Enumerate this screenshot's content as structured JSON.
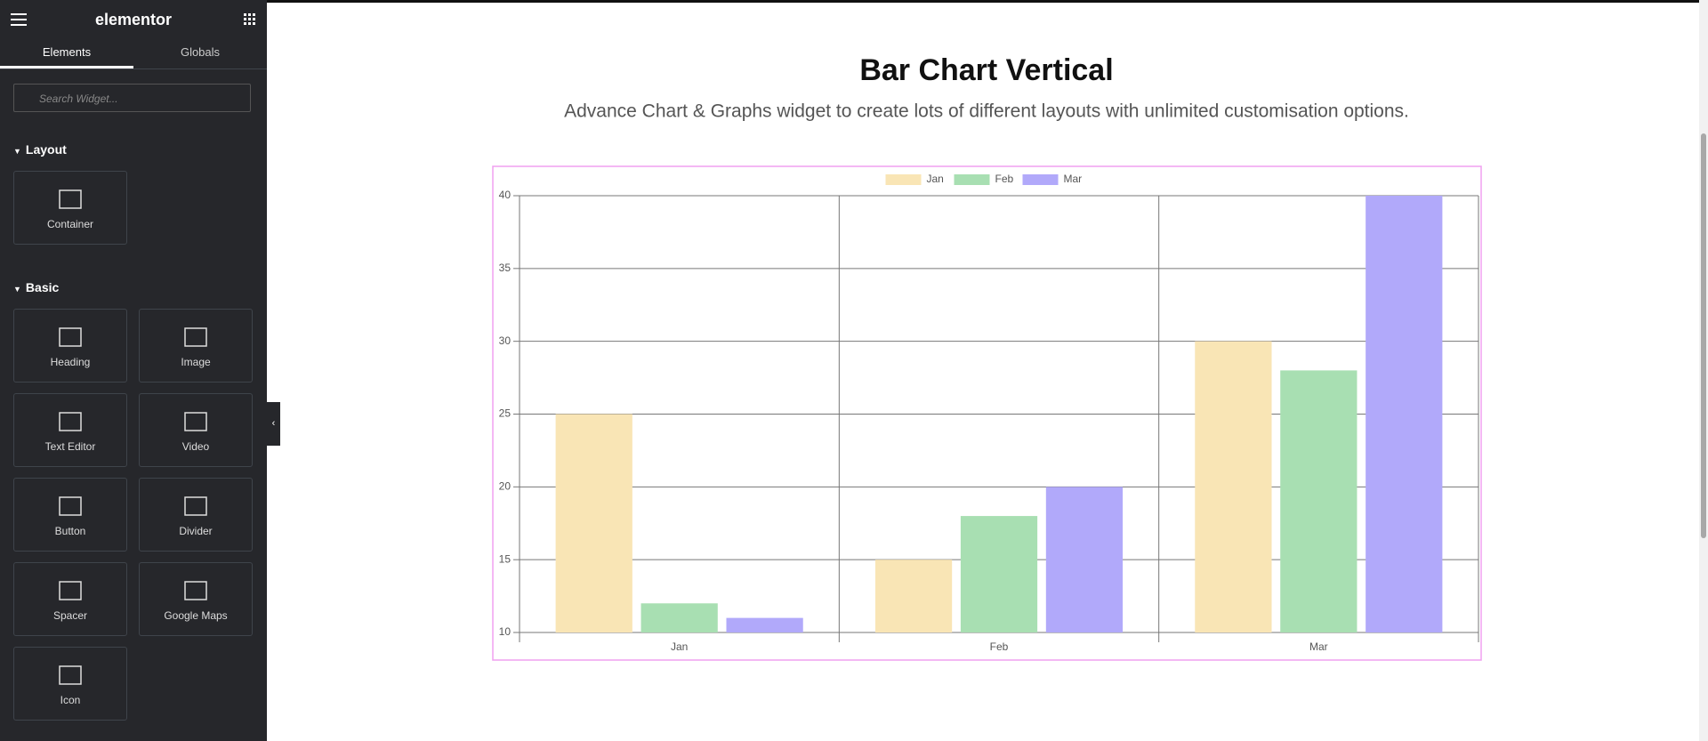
{
  "sidebar": {
    "brand": "elementor",
    "tabs": [
      "Elements",
      "Globals"
    ],
    "search_placeholder": "Search Widget...",
    "sections": [
      {
        "title": "Layout",
        "widgets": [
          "Container"
        ]
      },
      {
        "title": "Basic",
        "widgets": [
          "Heading",
          "Image",
          "Text Editor",
          "Video",
          "Button",
          "Divider",
          "Spacer",
          "Google Maps",
          "Icon"
        ]
      }
    ]
  },
  "page": {
    "heading": "Bar Chart Vertical",
    "subheading": "Advance Chart & Graphs widget to create lots of different layouts with unlimited customisation options."
  },
  "chart_data": {
    "type": "bar",
    "categories": [
      "Jan",
      "Feb",
      "Mar"
    ],
    "series": [
      {
        "name": "Jan",
        "color": "#f9e5b5",
        "values": [
          25,
          15,
          30
        ]
      },
      {
        "name": "Feb",
        "color": "#a8dfb2",
        "values": [
          12,
          18,
          28
        ]
      },
      {
        "name": "Mar",
        "color": "#b1a9fa",
        "values": [
          11,
          20,
          40
        ]
      }
    ],
    "ylim": [
      10,
      40
    ],
    "yticks": [
      10,
      15,
      20,
      25,
      30,
      35,
      40
    ],
    "grid": true,
    "legend": "top"
  }
}
